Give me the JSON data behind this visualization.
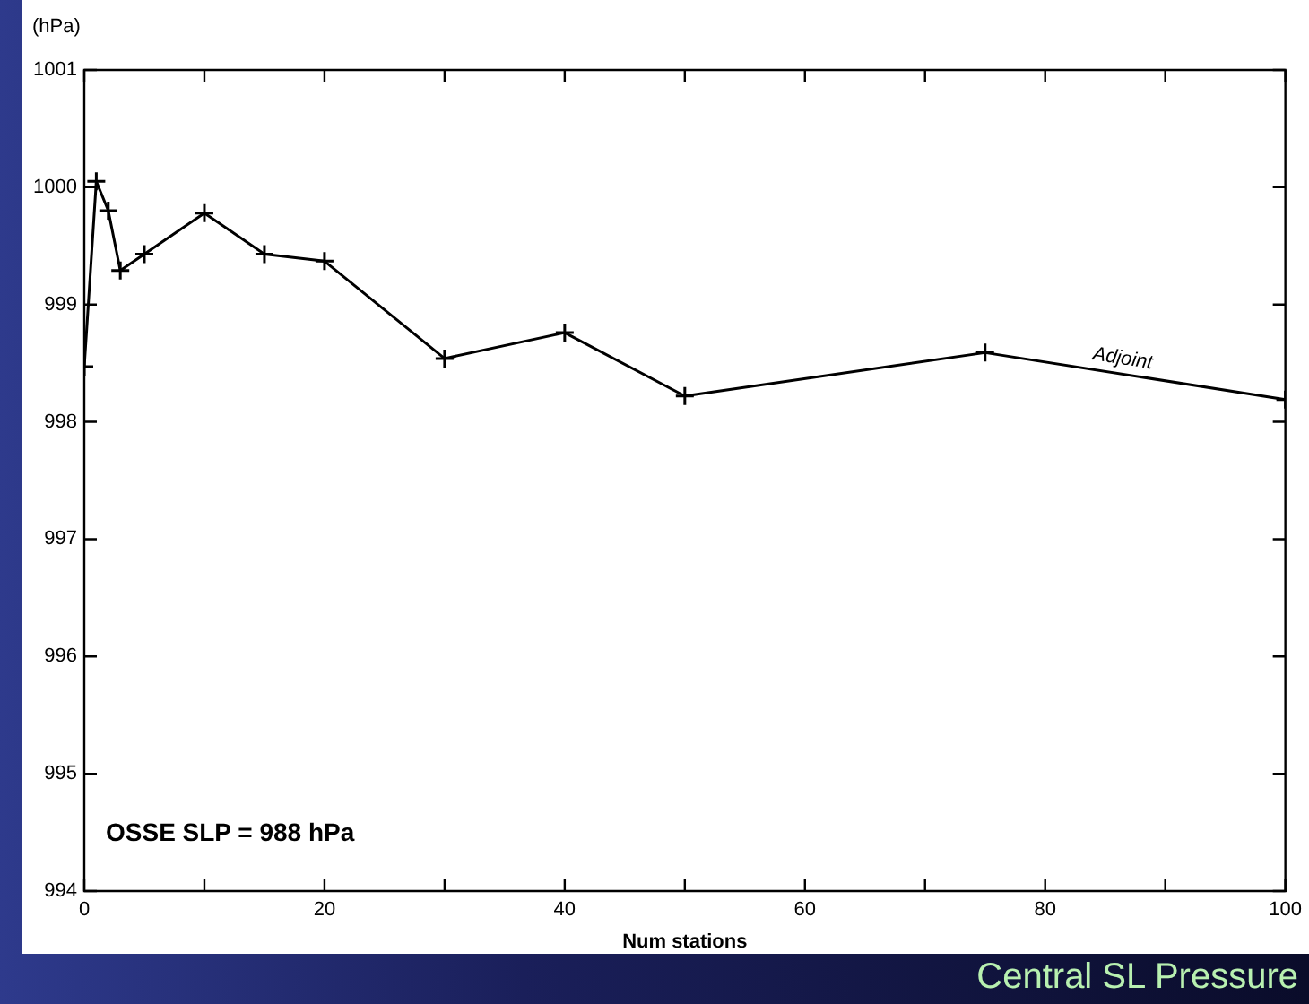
{
  "chart_data": {
    "type": "line",
    "ylabel": "(hPa)",
    "xlabel": "Num stations",
    "x": [
      0,
      1,
      2,
      3,
      5,
      10,
      15,
      20,
      30,
      40,
      50,
      75,
      100
    ],
    "series": [
      {
        "name": "Adjoint",
        "color": "#000000",
        "values": [
          998.47,
          1000.05,
          999.8,
          999.29,
          999.43,
          999.78,
          999.43,
          999.37,
          998.54,
          998.76,
          998.22,
          998.59,
          998.19
        ]
      }
    ],
    "xlim": [
      0,
      100
    ],
    "xticks": [
      0,
      {
        "value": 10,
        "label": null
      },
      20,
      {
        "value": 30,
        "label": null
      },
      40,
      {
        "value": 50,
        "label": null
      },
      60,
      {
        "value": 70,
        "label": null
      },
      80,
      {
        "value": 90,
        "label": null
      },
      100
    ],
    "ylim": [
      994,
      1001
    ],
    "yticks": [
      994,
      995,
      996,
      997,
      998,
      999,
      1000,
      1001
    ],
    "marker": "cross",
    "line_style": "solid",
    "grid": false,
    "legend": false,
    "annotations": [
      "OSSE SLP = 988 hPa",
      "Central SL Pressure"
    ]
  }
}
